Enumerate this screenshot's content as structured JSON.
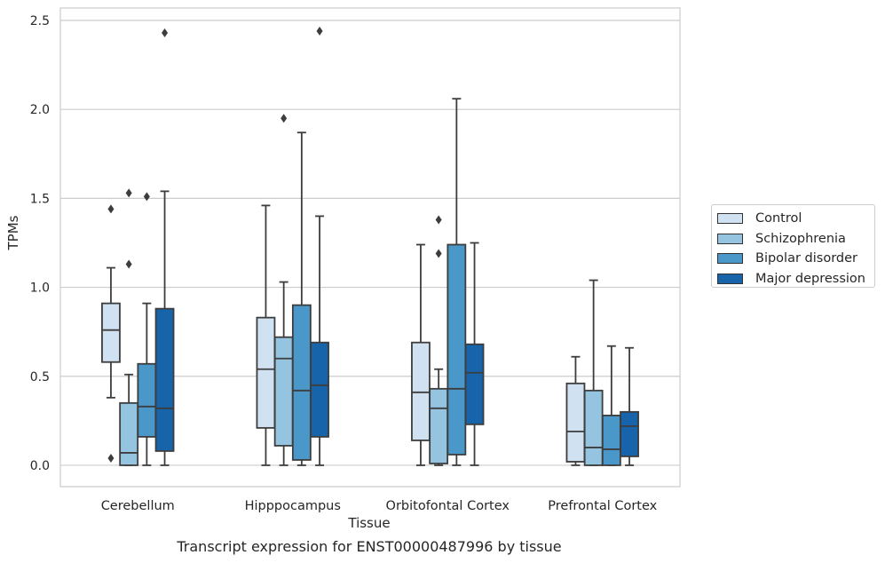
{
  "chart_data": {
    "type": "box",
    "xlabel": "Tissue",
    "ylabel": "TPMs",
    "ylim": [
      -0.12,
      2.57
    ],
    "yticks": [
      "0.0",
      "0.5",
      "1.0",
      "1.5",
      "2.0",
      "2.5"
    ],
    "ytick_values": [
      0,
      0.5,
      1.0,
      1.5,
      2.0,
      2.5
    ],
    "grid": true,
    "legend_position": "right",
    "categories": [
      "Cerebellum",
      "Hipppocampus",
      "Orbitofontal Cortex",
      "Prefrontal Cortex"
    ],
    "series": [
      {
        "name": "Control",
        "color": "#d0e1f2",
        "boxes": [
          {
            "whislo": 0.38,
            "q1": 0.58,
            "med": 0.76,
            "q3": 0.91,
            "whishi": 1.11,
            "fliers": [
              1.44,
              0.04
            ]
          },
          {
            "whislo": 0.0,
            "q1": 0.21,
            "med": 0.54,
            "q3": 0.83,
            "whishi": 1.46,
            "fliers": []
          },
          {
            "whislo": 0.0,
            "q1": 0.14,
            "med": 0.41,
            "q3": 0.69,
            "whishi": 1.24,
            "fliers": []
          },
          {
            "whislo": 0.0,
            "q1": 0.02,
            "med": 0.19,
            "q3": 0.46,
            "whishi": 0.61,
            "fliers": []
          }
        ]
      },
      {
        "name": "Schizophrenia",
        "color": "#94c4df",
        "boxes": [
          {
            "whislo": 0.0,
            "q1": 0.0,
            "med": 0.07,
            "q3": 0.35,
            "whishi": 0.51,
            "fliers": [
              1.53,
              1.13
            ]
          },
          {
            "whislo": 0.0,
            "q1": 0.11,
            "med": 0.6,
            "q3": 0.72,
            "whishi": 1.03,
            "fliers": [
              1.95
            ]
          },
          {
            "whislo": 0.0,
            "q1": 0.01,
            "med": 0.32,
            "q3": 0.43,
            "whishi": 0.54,
            "fliers": [
              1.38,
              1.19
            ]
          },
          {
            "whislo": 0.0,
            "q1": 0.0,
            "med": 0.1,
            "q3": 0.42,
            "whishi": 1.04,
            "fliers": []
          }
        ]
      },
      {
        "name": "Bipolar disorder",
        "color": "#4a98c9",
        "boxes": [
          {
            "whislo": 0.0,
            "q1": 0.16,
            "med": 0.33,
            "q3": 0.57,
            "whishi": 0.91,
            "fliers": [
              1.51
            ]
          },
          {
            "whislo": 0.0,
            "q1": 0.03,
            "med": 0.42,
            "q3": 0.9,
            "whishi": 1.87,
            "fliers": []
          },
          {
            "whislo": 0.0,
            "q1": 0.06,
            "med": 0.43,
            "q3": 1.24,
            "whishi": 2.06,
            "fliers": []
          },
          {
            "whislo": 0.0,
            "q1": 0.0,
            "med": 0.09,
            "q3": 0.28,
            "whishi": 0.67,
            "fliers": []
          }
        ]
      },
      {
        "name": "Major depression",
        "color": "#1764ab",
        "boxes": [
          {
            "whislo": 0.0,
            "q1": 0.08,
            "med": 0.32,
            "q3": 0.88,
            "whishi": 1.54,
            "fliers": [
              2.43
            ]
          },
          {
            "whislo": 0.0,
            "q1": 0.16,
            "med": 0.45,
            "q3": 0.69,
            "whishi": 1.4,
            "fliers": [
              2.44
            ]
          },
          {
            "whislo": 0.0,
            "q1": 0.23,
            "med": 0.52,
            "q3": 0.68,
            "whishi": 1.25,
            "fliers": []
          },
          {
            "whislo": 0.0,
            "q1": 0.05,
            "med": 0.22,
            "q3": 0.3,
            "whishi": 0.66,
            "fliers": []
          }
        ]
      }
    ]
  },
  "caption": "Transcript expression for ENST00000487996 by tissue"
}
